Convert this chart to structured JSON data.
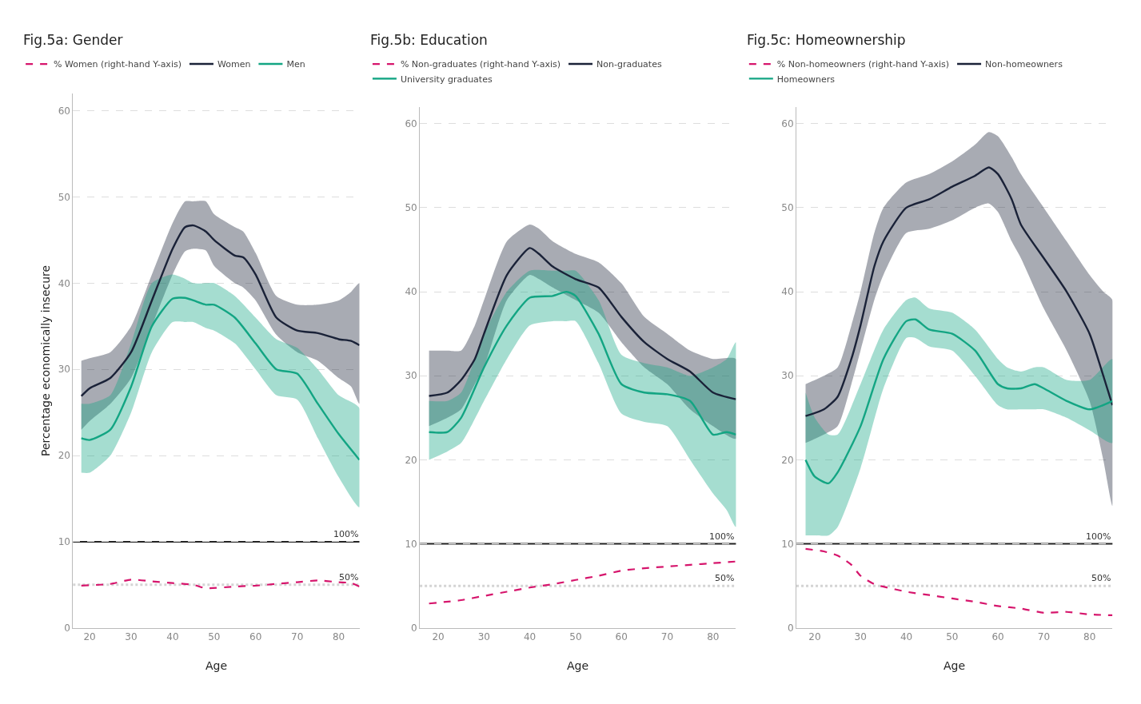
{
  "chart_data": [
    {
      "type": "line",
      "title": "Fig.5a: Gender",
      "xlabel": "Age",
      "ylabel": "Percentage economically insecure",
      "xlim": [
        16,
        85
      ],
      "xticks": [
        20,
        30,
        40,
        50,
        60,
        70,
        80
      ],
      "ylim": [
        0,
        62
      ],
      "yticks": [
        0,
        10,
        20,
        30,
        40,
        50,
        60
      ],
      "y2lim": [
        0,
        620
      ],
      "grid": "y",
      "legend": "top",
      "ref_lines": [
        {
          "axis": "y2",
          "value": 100,
          "label": "100%",
          "color": "#222222",
          "line_style": "solid"
        },
        {
          "axis": "y2",
          "value": 50,
          "label": "50%",
          "color": "#d4d4d4",
          "line_style": "dotted"
        }
      ],
      "series": [
        {
          "name": "% Women (right-hand Y-axis)",
          "color": "#d6156c",
          "axis": "y2",
          "line_style": "dashed",
          "x": [
            18,
            25,
            30,
            35,
            40,
            45,
            48,
            55,
            60,
            65,
            70,
            75,
            80,
            83,
            85
          ],
          "values": [
            49,
            51,
            56,
            54,
            52,
            50,
            46,
            48,
            49,
            51,
            53,
            55,
            53,
            52,
            48
          ]
        },
        {
          "name": "Women",
          "color": "#1a2238",
          "x": [
            18,
            20,
            25,
            30,
            35,
            40,
            43,
            45,
            48,
            50,
            55,
            57,
            60,
            65,
            70,
            75,
            80,
            83,
            85
          ],
          "values": [
            26.9,
            27.8,
            29,
            32,
            38,
            44,
            46.5,
            46.7,
            46,
            45,
            43.2,
            43,
            41,
            36,
            34.5,
            34.2,
            33.5,
            33.3,
            32.8
          ],
          "upper": [
            31,
            31.3,
            32,
            35,
            41,
            47,
            49.5,
            49.5,
            49.5,
            48,
            46.5,
            46,
            43.5,
            38.5,
            37.5,
            37.5,
            38,
            39,
            40
          ],
          "lower": [
            23,
            24,
            26,
            29,
            35,
            41,
            43.7,
            44,
            43.8,
            42,
            40,
            39.5,
            38,
            34,
            32,
            31,
            29,
            28,
            26
          ]
        },
        {
          "name": "Men",
          "color": "#13a583",
          "x": [
            18,
            20,
            25,
            30,
            35,
            40,
            43,
            45,
            48,
            50,
            55,
            60,
            65,
            70,
            75,
            80,
            85
          ],
          "values": [
            22,
            21.8,
            23,
            28,
            35,
            38.2,
            38.3,
            38,
            37.5,
            37.5,
            36,
            33,
            30,
            29.5,
            26,
            22.5,
            19.5
          ],
          "upper": [
            26,
            26,
            27,
            33,
            40,
            41,
            40.5,
            40,
            40,
            40,
            38.5,
            36,
            33.5,
            32.5,
            30,
            27,
            25.5
          ],
          "lower": [
            18,
            18,
            20,
            25,
            32,
            35.5,
            35.5,
            35.5,
            34.8,
            34.5,
            33,
            30,
            27,
            26.5,
            22,
            17.5,
            14
          ]
        }
      ]
    },
    {
      "type": "line",
      "title": "Fig.5b: Education",
      "xlabel": "Age",
      "xlim": [
        16,
        85
      ],
      "xticks": [
        20,
        30,
        40,
        50,
        60,
        70,
        80
      ],
      "ylim": [
        0,
        62
      ],
      "yticks": [
        0,
        10,
        20,
        30,
        40,
        50,
        60
      ],
      "y2lim": [
        0,
        620
      ],
      "grid": "y",
      "legend": "top",
      "ref_lines": [
        {
          "axis": "y2",
          "value": 100,
          "label": "100%",
          "color": "#222222",
          "line_style": "solid"
        },
        {
          "axis": "y2",
          "value": 50,
          "label": "50%",
          "color": "#d4d4d4",
          "line_style": "dotted"
        }
      ],
      "series": [
        {
          "name": "% Non-graduates (right-hand Y-axis)",
          "color": "#d6156c",
          "axis": "y2",
          "line_style": "dashed",
          "x": [
            18,
            25,
            30,
            35,
            40,
            45,
            50,
            55,
            60,
            65,
            70,
            75,
            80,
            85
          ],
          "values": [
            29,
            33,
            38,
            43,
            48,
            52,
            57,
            62,
            68,
            71,
            73,
            75,
            77,
            79
          ]
        },
        {
          "name": "Non-graduates",
          "color": "#1a2238",
          "x": [
            18,
            22,
            25,
            28,
            30,
            35,
            40,
            42,
            45,
            50,
            55,
            60,
            65,
            70,
            75,
            80,
            85
          ],
          "values": [
            27.6,
            28,
            29.5,
            32,
            35,
            42,
            45.2,
            44.5,
            43,
            41.5,
            40.5,
            37,
            34,
            32,
            30.5,
            28,
            27.2
          ],
          "upper": [
            33,
            33,
            33,
            36,
            39,
            46,
            48,
            47.5,
            46,
            44.5,
            43.5,
            41,
            37,
            35,
            33,
            32,
            32
          ],
          "lower": [
            24,
            25,
            26,
            29,
            31,
            39,
            42,
            41.5,
            40.5,
            39,
            37.5,
            34,
            31,
            29,
            26,
            24,
            22.5
          ]
        },
        {
          "name": "University graduates",
          "color": "#13a583",
          "x": [
            18,
            22,
            25,
            30,
            35,
            40,
            45,
            48,
            50,
            55,
            60,
            65,
            70,
            75,
            80,
            83,
            85
          ],
          "values": [
            23.3,
            23.3,
            25,
            31,
            36,
            39.3,
            39.5,
            40,
            39.5,
            35,
            29,
            28,
            27.8,
            27,
            23,
            23.3,
            23
          ],
          "upper": [
            27,
            27,
            28,
            35,
            40,
            42.5,
            42.5,
            42.5,
            42.5,
            39,
            32.5,
            31.5,
            31,
            30,
            31,
            32,
            34
          ],
          "lower": [
            20,
            21,
            22,
            27,
            32,
            36,
            36.5,
            36.5,
            36.5,
            31.5,
            25.5,
            24.5,
            24,
            20,
            16,
            14,
            12
          ]
        }
      ]
    },
    {
      "type": "line",
      "title": "Fig.5c: Homeownership",
      "xlabel": "Age",
      "xlim": [
        16,
        85
      ],
      "xticks": [
        20,
        30,
        40,
        50,
        60,
        70,
        80
      ],
      "ylim": [
        0,
        62
      ],
      "yticks": [
        0,
        10,
        20,
        30,
        40,
        50,
        60
      ],
      "y2lim": [
        0,
        620
      ],
      "grid": "y",
      "legend": "top",
      "ref_lines": [
        {
          "axis": "y2",
          "value": 100,
          "label": "100%",
          "color": "#222222",
          "line_style": "solid"
        },
        {
          "axis": "y2",
          "value": 50,
          "label": "50%",
          "color": "#d4d4d4",
          "line_style": "dotted"
        }
      ],
      "series": [
        {
          "name": "% Non-homeowners (right-hand Y-axis)",
          "color": "#d6156c",
          "axis": "y2",
          "line_style": "dashed",
          "x": [
            18,
            22,
            25,
            28,
            30,
            33,
            35,
            40,
            45,
            50,
            55,
            60,
            65,
            70,
            75,
            80,
            85
          ],
          "values": [
            94,
            91,
            86,
            75,
            62,
            52,
            49,
            43,
            39,
            35,
            31,
            26,
            23,
            18,
            19,
            16,
            15
          ]
        },
        {
          "name": "Non-homeowners",
          "color": "#1a2238",
          "x": [
            18,
            22,
            25,
            28,
            30,
            33,
            35,
            40,
            45,
            50,
            55,
            58,
            60,
            63,
            65,
            70,
            75,
            80,
            83,
            85
          ],
          "values": [
            25.2,
            26,
            27.5,
            32,
            36,
            43,
            46,
            50,
            51,
            52.5,
            53.8,
            54.8,
            54,
            51,
            48,
            44,
            40,
            35,
            30,
            26.5
          ],
          "upper": [
            29,
            30,
            31,
            36,
            40,
            47,
            50,
            53,
            54,
            55.5,
            57.5,
            59,
            58.5,
            56,
            54,
            50,
            46,
            42,
            40,
            39
          ],
          "lower": [
            22,
            23,
            24,
            29,
            33,
            39,
            42,
            47,
            47.5,
            48.5,
            50,
            50.5,
            49.5,
            46,
            44,
            38,
            33,
            27,
            20,
            14.5
          ]
        },
        {
          "name": "Homeowners",
          "color": "#13a583",
          "x": [
            18,
            20,
            23,
            25,
            30,
            35,
            40,
            42,
            45,
            50,
            55,
            60,
            62,
            65,
            68,
            70,
            75,
            80,
            85
          ],
          "values": [
            20,
            18,
            17.2,
            18.5,
            24,
            32,
            36.5,
            36.7,
            35.5,
            35,
            33,
            29,
            28.5,
            28.5,
            29,
            28.5,
            27,
            26,
            27
          ],
          "upper": [
            28,
            25,
            23,
            23,
            29,
            35.5,
            39,
            39.3,
            38,
            37.5,
            35.5,
            32,
            31,
            30.5,
            31,
            31,
            29.5,
            29.5,
            32
          ],
          "lower": [
            11,
            11,
            11,
            12,
            19,
            28.5,
            34.5,
            34.5,
            33.5,
            33,
            30,
            26.5,
            26,
            26,
            26,
            26,
            25,
            23.5,
            22
          ]
        }
      ]
    }
  ]
}
